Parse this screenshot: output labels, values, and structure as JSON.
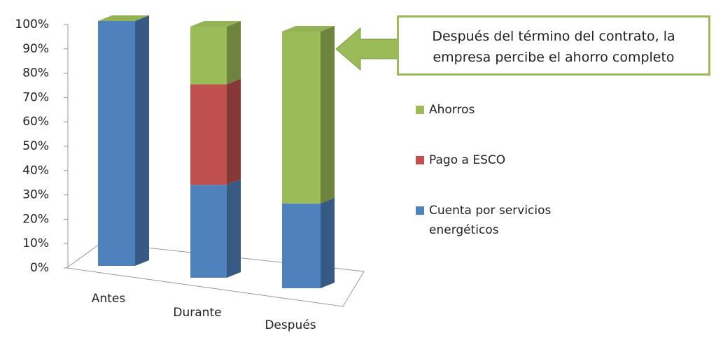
{
  "chart_data": {
    "type": "bar3d_stacked",
    "categories": [
      "Antes",
      "Durante",
      "Después"
    ],
    "series": [
      {
        "name": "Cuenta por servicios energéticos",
        "color": "#4f81bd",
        "values": [
          100,
          37,
          33
        ]
      },
      {
        "name": "Pago a ESCO",
        "color": "#c0504d",
        "values": [
          0,
          40,
          0
        ]
      },
      {
        "name": "Ahorros",
        "color": "#9bbb59",
        "values": [
          0,
          23,
          67
        ]
      }
    ],
    "ylim": [
      0,
      100
    ],
    "yticks": [
      {
        "value": 0,
        "label": "0%"
      },
      {
        "value": 10,
        "label": "10%"
      },
      {
        "value": 20,
        "label": "20%"
      },
      {
        "value": 30,
        "label": "30%"
      },
      {
        "value": 40,
        "label": "40%"
      },
      {
        "value": 50,
        "label": "50%"
      },
      {
        "value": 60,
        "label": "60%"
      },
      {
        "value": 70,
        "label": "70%"
      },
      {
        "value": 80,
        "label": "80%"
      },
      {
        "value": 90,
        "label": "90%"
      },
      {
        "value": 100,
        "label": "100%"
      }
    ],
    "legend_position": "right",
    "annotation": [
      "Después del término del contrato, la",
      "empresa percibe el ahorro completo"
    ]
  }
}
